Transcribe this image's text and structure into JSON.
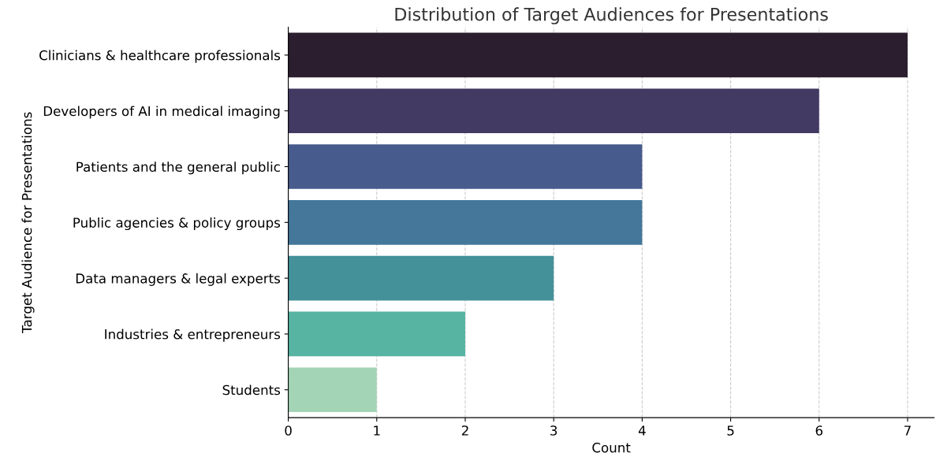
{
  "chart_data": {
    "type": "bar",
    "orientation": "horizontal",
    "title": "Distribution of Target Audiences for Presentations",
    "xlabel": "Count",
    "ylabel": "Target Audience for Presentations",
    "categories": [
      "Clinicians & healthcare professionals",
      "Developers of AI in medical imaging",
      "Patients and the general public",
      "Public agencies & policy groups",
      "Data managers & legal experts",
      "Industries & entrepreneurs",
      "Students"
    ],
    "values": [
      7,
      6,
      4,
      4,
      3,
      2,
      1
    ],
    "colors": [
      "#2a1e2f",
      "#433a63",
      "#475b8d",
      "#44779a",
      "#45919a",
      "#58b4a2",
      "#a4d4b6"
    ],
    "xlim": [
      0,
      7.3
    ],
    "xticks": [
      0,
      1,
      2,
      3,
      4,
      5,
      6,
      7
    ],
    "grid": "x"
  }
}
